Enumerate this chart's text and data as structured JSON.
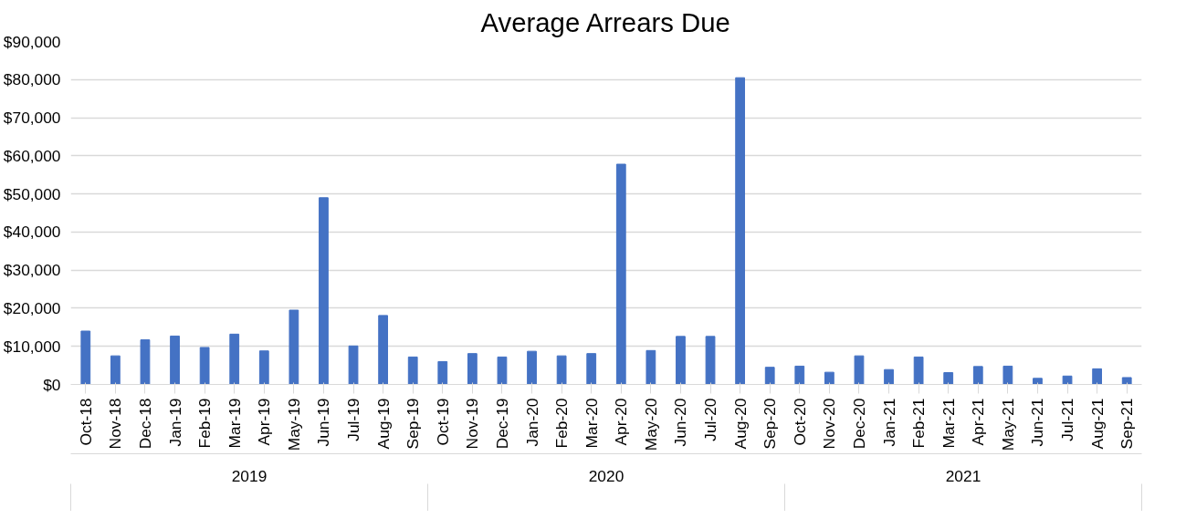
{
  "chart_data": {
    "type": "bar",
    "title": "Average Arrears Due",
    "categories": [
      "Oct-18",
      "Nov-18",
      "Dec-18",
      "Jan-19",
      "Feb-19",
      "Mar-19",
      "Apr-19",
      "May-19",
      "Jun-19",
      "Jul-19",
      "Aug-19",
      "Sep-19",
      "Oct-19",
      "Nov-19",
      "Dec-19",
      "Jan-20",
      "Feb-20",
      "Mar-20",
      "Apr-20",
      "May-20",
      "Jun-20",
      "Jul-20",
      "Aug-20",
      "Sep-20",
      "Oct-20",
      "Nov-20",
      "Dec-20",
      "Jan-21",
      "Feb-21",
      "Mar-21",
      "Apr-21",
      "May-21",
      "Jun-21",
      "Jul-21",
      "Aug-21",
      "Sep-21"
    ],
    "values": [
      14000,
      7500,
      11700,
      12700,
      9700,
      13200,
      8800,
      19500,
      49000,
      10100,
      18100,
      7200,
      6000,
      8100,
      7200,
      8700,
      7500,
      8100,
      57800,
      8900,
      12600,
      12600,
      80500,
      4500,
      4800,
      3200,
      7500,
      3900,
      7200,
      3100,
      4700,
      4800,
      1600,
      2200,
      4100,
      1800
    ],
    "color": "#4472c4",
    "ylim": [
      0,
      90000
    ],
    "yticks": [
      {
        "value": 0,
        "label": "$0"
      },
      {
        "value": 10000,
        "label": "$10,000"
      },
      {
        "value": 20000,
        "label": "$20,000"
      },
      {
        "value": 30000,
        "label": "$30,000"
      },
      {
        "value": 40000,
        "label": "$40,000"
      },
      {
        "value": 50000,
        "label": "$50,000"
      },
      {
        "value": 60000,
        "label": "$60,000"
      },
      {
        "value": 70000,
        "label": "$70,000"
      },
      {
        "value": 80000,
        "label": "$80,000"
      },
      {
        "value": 90000,
        "label": "$90,000"
      }
    ],
    "annotations": [
      "2019",
      "2020",
      "2021"
    ],
    "grid": "y"
  }
}
